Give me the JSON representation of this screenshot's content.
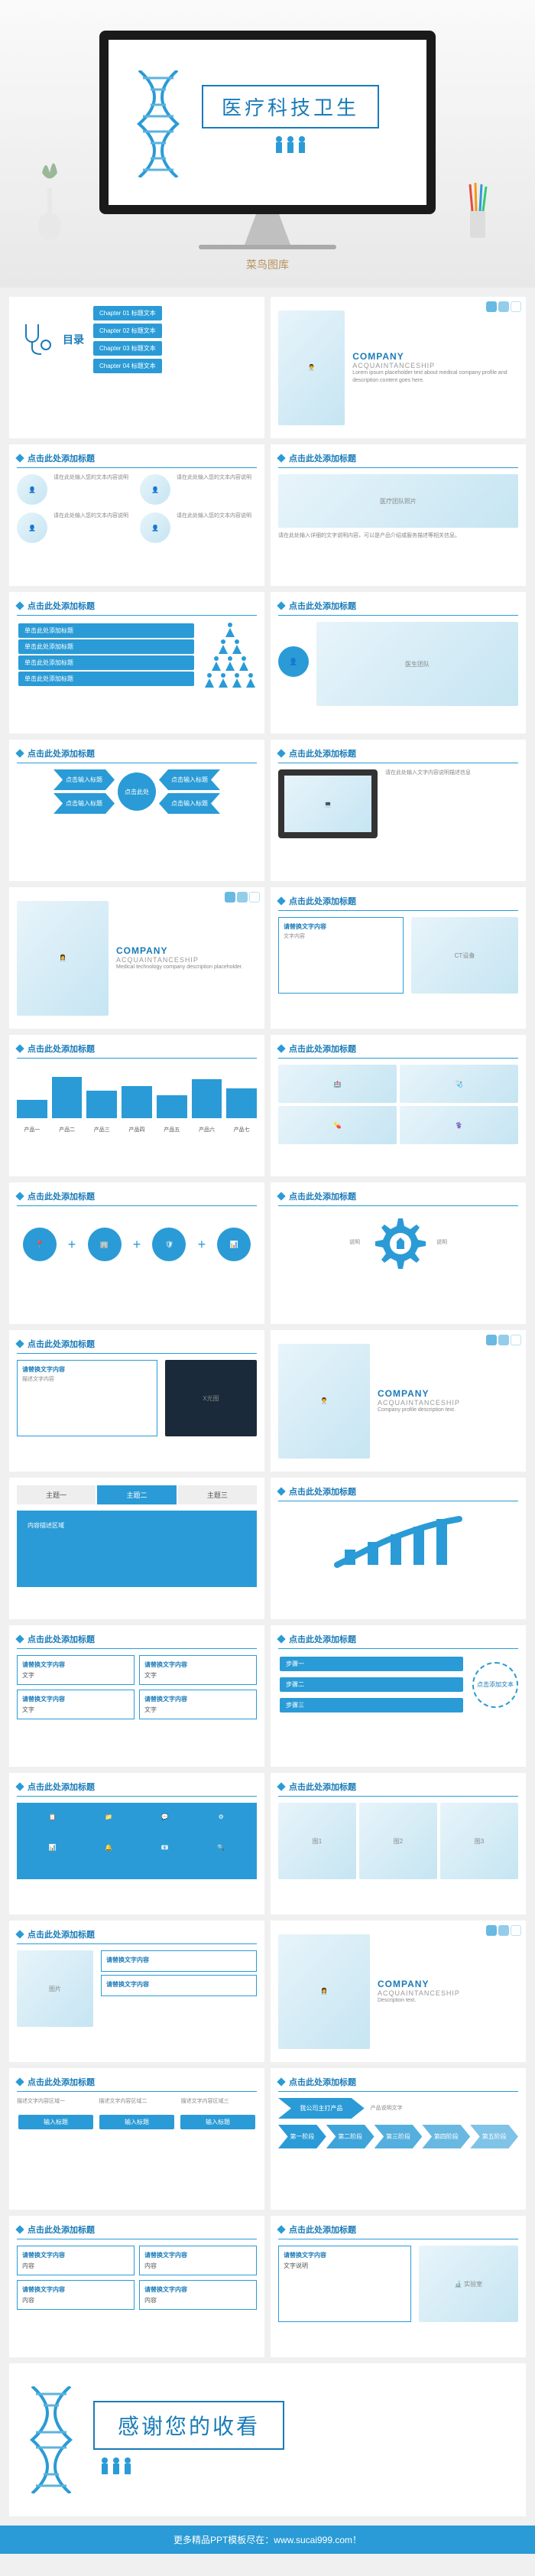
{
  "hero": {
    "title": "医疗科技卫生",
    "watermark": "菜鸟图库"
  },
  "common": {
    "slide_title": "点击此处添加标题",
    "company": "COMPANY",
    "acquaint": "ACQUAINTANCESHIP",
    "content_label": "请替换文字内容",
    "toc": "目录",
    "add_text": "点击添加文本"
  },
  "slide2": {
    "items": [
      "Chapter 01 标题文本",
      "Chapter 02 标题文本",
      "Chapter 03 标题文本",
      "Chapter 04 标题文本"
    ]
  },
  "slide7": {
    "boxes": [
      "单击此处添加标题",
      "单击此处添加标题",
      "单击此处添加标题",
      "单击此处添加标题"
    ]
  },
  "slide9": {
    "boxes": [
      "点击输入标题",
      "点击输入标题",
      "点击输入标题",
      "点击输入标题"
    ],
    "center": "点击此处"
  },
  "chart12": {
    "values": [
      40,
      90,
      60,
      70,
      50,
      85,
      65
    ],
    "labels": [
      "产品一",
      "产品二",
      "产品三",
      "产品四",
      "产品五",
      "产品六",
      "产品七"
    ],
    "color": "#2a9bd6"
  },
  "chart15": {
    "values": [
      35,
      50,
      65,
      80
    ],
    "color": "#2a9bd6"
  },
  "chart22": {
    "values": [
      20,
      35,
      50,
      65,
      80
    ],
    "colors": [
      "#7fc4e6",
      "#5bb3de",
      "#3ba2d6",
      "#2a9bd6",
      "#1a7bb8"
    ]
  },
  "slide20": {
    "topics": [
      "主题一",
      "主题二",
      "主题三"
    ]
  },
  "chevrons": [
    "第一阶段",
    "第二阶段",
    "第三阶段",
    "第四阶段",
    "第五阶段"
  ],
  "slide17": {
    "product": "我公司主打产品"
  },
  "slide26": {
    "steps": [
      "输入标题",
      "输入标题",
      "输入标题"
    ]
  },
  "thanks": "感谢您的收看",
  "footer": "更多精品PPT模板尽在：www.sucai999.com！",
  "colors": {
    "primary": "#2a9bd6",
    "dark": "#1a7bb8",
    "bg": "#ffffff"
  }
}
